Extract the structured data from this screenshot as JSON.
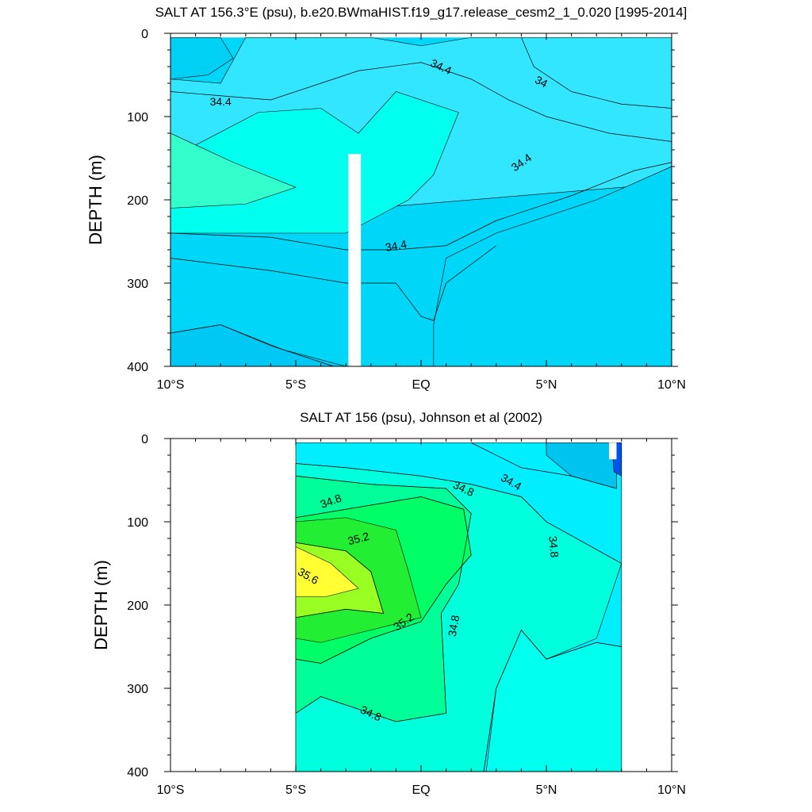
{
  "chart_data": [
    {
      "type": "heatmap",
      "title": "SALT AT 156.3°E (psu), b.e20.BWmaHIST.f19_g17.release_cesm2_1_0.020 [1995-2014]",
      "ylabel": "DEPTH (m)",
      "xlabel": "",
      "x_ticks": [
        "10°S",
        "5°S",
        "EQ",
        "5°N",
        "10°N"
      ],
      "x_range": [
        -10,
        10
      ],
      "y_ticks": [
        "0",
        "100",
        "200",
        "300",
        "400"
      ],
      "y_range": [
        0,
        400
      ],
      "y_reversed": true,
      "data_x_range": [
        -10,
        10
      ],
      "data_y_range": [
        5,
        400
      ],
      "missing_columns": [
        [
          -2.9,
          -2.4,
          145,
          400
        ]
      ],
      "bands": [
        {
          "level": 33.6,
          "color": "#0044ee",
          "region": [
            [
              6,
              5
            ],
            [
              10,
              5
            ],
            [
              10,
              55
            ],
            [
              7.5,
              55
            ],
            [
              6.2,
              45
            ],
            [
              6,
              20
            ]
          ]
        },
        {
          "level": 33.8,
          "color": "#0088ee",
          "region": [
            [
              4.5,
              5
            ],
            [
              10,
              5
            ],
            [
              10,
              90
            ],
            [
              7,
              85
            ],
            [
              5,
              60
            ],
            [
              4.6,
              30
            ]
          ]
        },
        {
          "level": 34.0,
          "color": "#00b0f0",
          "region": [
            [
              3.2,
              5
            ],
            [
              10,
              5
            ],
            [
              10,
              130
            ],
            [
              6.5,
              110
            ],
            [
              4,
              80
            ],
            [
              3.2,
              40
            ]
          ]
        },
        {
          "level": 34.2,
          "color": "#00d0f4",
          "region": [
            [
              -10,
              5
            ],
            [
              -8,
              5
            ],
            [
              -7.5,
              30
            ],
            [
              -8.5,
              50
            ],
            [
              -10,
              55
            ]
          ]
        },
        {
          "level": 34.3,
          "color": "#33e6ff",
          "region": [
            [
              -10,
              55
            ],
            [
              -8,
              60
            ],
            [
              -7,
              5
            ],
            [
              -2,
              5
            ],
            [
              0,
              15
            ],
            [
              2,
              5
            ],
            [
              10,
              5
            ],
            [
              10,
              180
            ],
            [
              -10,
              230
            ]
          ]
        },
        {
          "level": 34.5,
          "color": "#00ffee",
          "region": [
            [
              -10,
              150
            ],
            [
              -6.5,
              95
            ],
            [
              -4,
              90
            ],
            [
              -2.5,
              120
            ],
            [
              -1,
              70
            ],
            [
              1.5,
              95
            ],
            [
              0.5,
              170
            ],
            [
              -0.5,
              200
            ],
            [
              -3,
              240
            ],
            [
              -10,
              240
            ]
          ]
        },
        {
          "level": 34.6,
          "color": "#33ffcc",
          "region": [
            [
              -10,
              120
            ],
            [
              -7.5,
              155
            ],
            [
              -5,
              185
            ],
            [
              -7,
              205
            ],
            [
              -10,
              210
            ]
          ]
        },
        {
          "level": 34.4,
          "color": "#00d6f8",
          "region": [
            [
              0.5,
              350
            ],
            [
              1,
              270
            ],
            [
              3,
              240
            ],
            [
              7,
              200
            ],
            [
              10,
              160
            ],
            [
              10,
              400
            ],
            [
              0.5,
              400
            ]
          ]
        },
        {
          "level": 34.2,
          "color": "#00c8f4",
          "region": [
            [
              -10,
              360
            ],
            [
              -8,
              350
            ],
            [
              -5.5,
              380
            ],
            [
              -3,
              400
            ],
            [
              -10,
              400
            ]
          ]
        }
      ],
      "contours": [
        {
          "label": "34.4",
          "points": [
            [
              -10,
              70
            ],
            [
              -8,
              75
            ],
            [
              -6,
              80
            ],
            [
              -4,
              60
            ],
            [
              -2.5,
              45
            ],
            [
              0,
              35
            ],
            [
              2,
              55
            ],
            [
              3.5,
              80
            ],
            [
              5,
              100
            ],
            [
              7.5,
              120
            ],
            [
              10,
              130
            ]
          ]
        },
        {
          "label": "34",
          "points": [
            [
              4,
              5
            ],
            [
              4.5,
              40
            ],
            [
              6,
              70
            ],
            [
              8,
              85
            ],
            [
              10,
              90
            ]
          ]
        },
        {
          "label": "34.4",
          "points": [
            [
              -10,
              240
            ],
            [
              -6,
              245
            ],
            [
              -3,
              260
            ],
            [
              -1,
              260
            ],
            [
              1,
              255
            ],
            [
              3,
              225
            ],
            [
              6,
              195
            ],
            [
              8.5,
              165
            ],
            [
              10,
              155
            ]
          ]
        },
        {
          "label": "",
          "points": [
            [
              -10,
              270
            ],
            [
              -6,
              285
            ],
            [
              -3,
              300
            ],
            [
              -1,
              300
            ],
            [
              0,
              340
            ],
            [
              0.5,
              345
            ],
            [
              1,
              300
            ],
            [
              3,
              255
            ]
          ]
        },
        {
          "label": "",
          "points": [
            [
              -10,
              360
            ],
            [
              -8,
              350
            ],
            [
              -6,
              375
            ],
            [
              -3.5,
              400
            ]
          ]
        }
      ],
      "contour_labels": [
        {
          "text": "34.4",
          "x": 0.8,
          "y": 40,
          "angle": 25
        },
        {
          "text": "34",
          "x": 4.8,
          "y": 58,
          "angle": 28
        },
        {
          "text": "34.4",
          "x": -8,
          "y": 82,
          "angle": 0
        },
        {
          "text": "34.4",
          "x": 4,
          "y": 155,
          "angle": -35
        },
        {
          "text": "34.4",
          "x": -1,
          "y": 255,
          "angle": -10
        }
      ]
    },
    {
      "type": "heatmap",
      "title": "SALT AT 156 (psu), Johnson et al (2002)",
      "ylabel": "DEPTH (m)",
      "xlabel": "",
      "x_ticks": [
        "10°S",
        "5°S",
        "EQ",
        "5°N",
        "10°N"
      ],
      "x_range": [
        -10,
        10
      ],
      "y_ticks": [
        "0",
        "100",
        "200",
        "300",
        "400"
      ],
      "y_range": [
        0,
        400
      ],
      "y_reversed": true,
      "data_x_range": [
        -5,
        8
      ],
      "data_y_range": [
        5,
        400
      ],
      "missing_columns": [
        [
          7.5,
          7.8,
          5,
          25
        ]
      ],
      "bands": [
        {
          "level": 34.4,
          "color": "#00eeff",
          "region": [
            [
              -5,
              5
            ],
            [
              8,
              5
            ],
            [
              8,
              400
            ],
            [
              -5,
              400
            ]
          ]
        },
        {
          "level": 34.2,
          "color": "#00c4f0",
          "region": [
            [
              5,
              5
            ],
            [
              7.8,
              5
            ],
            [
              7.8,
              60
            ],
            [
              6,
              45
            ],
            [
              5,
              20
            ]
          ]
        },
        {
          "level": 33.8,
          "color": "#0055ee",
          "region": [
            [
              7.6,
              5
            ],
            [
              8,
              5
            ],
            [
              8,
              45
            ],
            [
              7.7,
              40
            ]
          ]
        },
        {
          "level": 34.6,
          "color": "#00ffdd",
          "region": [
            [
              -5,
              30
            ],
            [
              -3,
              35
            ],
            [
              0,
              45
            ],
            [
              2,
              55
            ],
            [
              4,
              70
            ],
            [
              5,
              100
            ],
            [
              8,
              150
            ],
            [
              7,
              240
            ],
            [
              5,
              265
            ],
            [
              4,
              230
            ],
            [
              3,
              300
            ],
            [
              2.5,
              400
            ],
            [
              -5,
              400
            ]
          ]
        },
        {
          "level": 34.5,
          "color": "#00ffee",
          "region": [
            [
              2.6,
              400
            ],
            [
              3,
              300
            ],
            [
              4,
              230
            ],
            [
              5,
              265
            ],
            [
              7,
              245
            ],
            [
              8,
              250
            ],
            [
              8,
              400
            ]
          ]
        },
        {
          "level": 34.8,
          "color": "#00ff99",
          "region": [
            [
              -5,
              45
            ],
            [
              -2,
              55
            ],
            [
              1,
              60
            ],
            [
              2,
              90
            ],
            [
              1.5,
              175
            ],
            [
              0.8,
              210
            ],
            [
              1,
              330
            ],
            [
              -1,
              340
            ],
            [
              -4,
              310
            ],
            [
              -5,
              330
            ]
          ]
        },
        {
          "level": 35.0,
          "color": "#00ff66",
          "region": [
            [
              -5,
              95
            ],
            [
              -3,
              85
            ],
            [
              0,
              70
            ],
            [
              1.7,
              85
            ],
            [
              2,
              140
            ],
            [
              1,
              175
            ],
            [
              0,
              220
            ],
            [
              -2,
              240
            ],
            [
              -4,
              270
            ],
            [
              -5,
              265
            ]
          ]
        },
        {
          "level": 35.2,
          "color": "#22ee33",
          "region": [
            [
              -5,
              100
            ],
            [
              -3,
              95
            ],
            [
              -1,
              110
            ],
            [
              -0.5,
              160
            ],
            [
              0,
              215
            ],
            [
              -2,
              230
            ],
            [
              -4,
              245
            ],
            [
              -5,
              240
            ]
          ]
        },
        {
          "level": 35.4,
          "color": "#99ff22",
          "region": [
            [
              -5,
              125
            ],
            [
              -3,
              135
            ],
            [
              -2,
              160
            ],
            [
              -1.5,
              210
            ],
            [
              -3,
              205
            ],
            [
              -5,
              215
            ]
          ]
        },
        {
          "level": 35.6,
          "color": "#ffff33",
          "region": [
            [
              -5,
              130
            ],
            [
              -3.6,
              150
            ],
            [
              -2.5,
              180
            ],
            [
              -3.8,
              190
            ],
            [
              -5,
              190
            ]
          ]
        }
      ],
      "contours": [
        {
          "label": "34.8",
          "points": [
            [
              -5,
              45
            ],
            [
              -2,
              55
            ],
            [
              1,
              60
            ],
            [
              2,
              90
            ],
            [
              1.5,
              175
            ],
            [
              0.8,
              210
            ],
            [
              1,
              330
            ],
            [
              -1,
              340
            ],
            [
              -4,
              310
            ],
            [
              -5,
              330
            ]
          ]
        },
        {
          "label": "35.2",
          "points": [
            [
              -5,
              95
            ],
            [
              -3,
              85
            ],
            [
              0,
              70
            ],
            [
              1.7,
              85
            ],
            [
              2,
              140
            ],
            [
              1,
              175
            ],
            [
              0,
              220
            ],
            [
              -2,
              240
            ],
            [
              -4,
              270
            ],
            [
              -5,
              265
            ]
          ]
        },
        {
          "label": "35.6",
          "points": [
            [
              -5,
              125
            ],
            [
              -3,
              135
            ],
            [
              -2,
              160
            ],
            [
              -1.5,
              210
            ],
            [
              -3,
              205
            ],
            [
              -5,
              215
            ]
          ]
        },
        {
          "label": "34.4",
          "points": [
            [
              2,
              5
            ],
            [
              4,
              35
            ],
            [
              6,
              45
            ],
            [
              7.8,
              60
            ]
          ]
        },
        {
          "label": "34.8",
          "points": [
            [
              2.5,
              400
            ],
            [
              3,
              300
            ],
            [
              4,
              230
            ],
            [
              5,
              265
            ],
            [
              7,
              245
            ],
            [
              8,
              250
            ]
          ]
        },
        {
          "label": "",
          "points": [
            [
              -5,
              30
            ],
            [
              -3,
              35
            ],
            [
              0,
              45
            ],
            [
              2,
              55
            ],
            [
              4,
              70
            ],
            [
              5,
              100
            ],
            [
              8,
              150
            ]
          ]
        }
      ],
      "contour_labels": [
        {
          "text": "34.8",
          "x": -3.6,
          "y": 75,
          "angle": -20
        },
        {
          "text": "35.2",
          "x": -2.5,
          "y": 120,
          "angle": -15
        },
        {
          "text": "35.6",
          "x": -4.5,
          "y": 165,
          "angle": 30
        },
        {
          "text": "35.2",
          "x": -0.7,
          "y": 220,
          "angle": -35
        },
        {
          "text": "34.8",
          "x": 1.7,
          "y": 60,
          "angle": 25
        },
        {
          "text": "34.4",
          "x": 3.6,
          "y": 52,
          "angle": 30
        },
        {
          "text": "34.8",
          "x": 5.3,
          "y": 130,
          "angle": 85
        },
        {
          "text": "34.8",
          "x": 1.3,
          "y": 225,
          "angle": -80
        },
        {
          "text": "34.8",
          "x": -2,
          "y": 330,
          "angle": 25
        }
      ]
    }
  ]
}
